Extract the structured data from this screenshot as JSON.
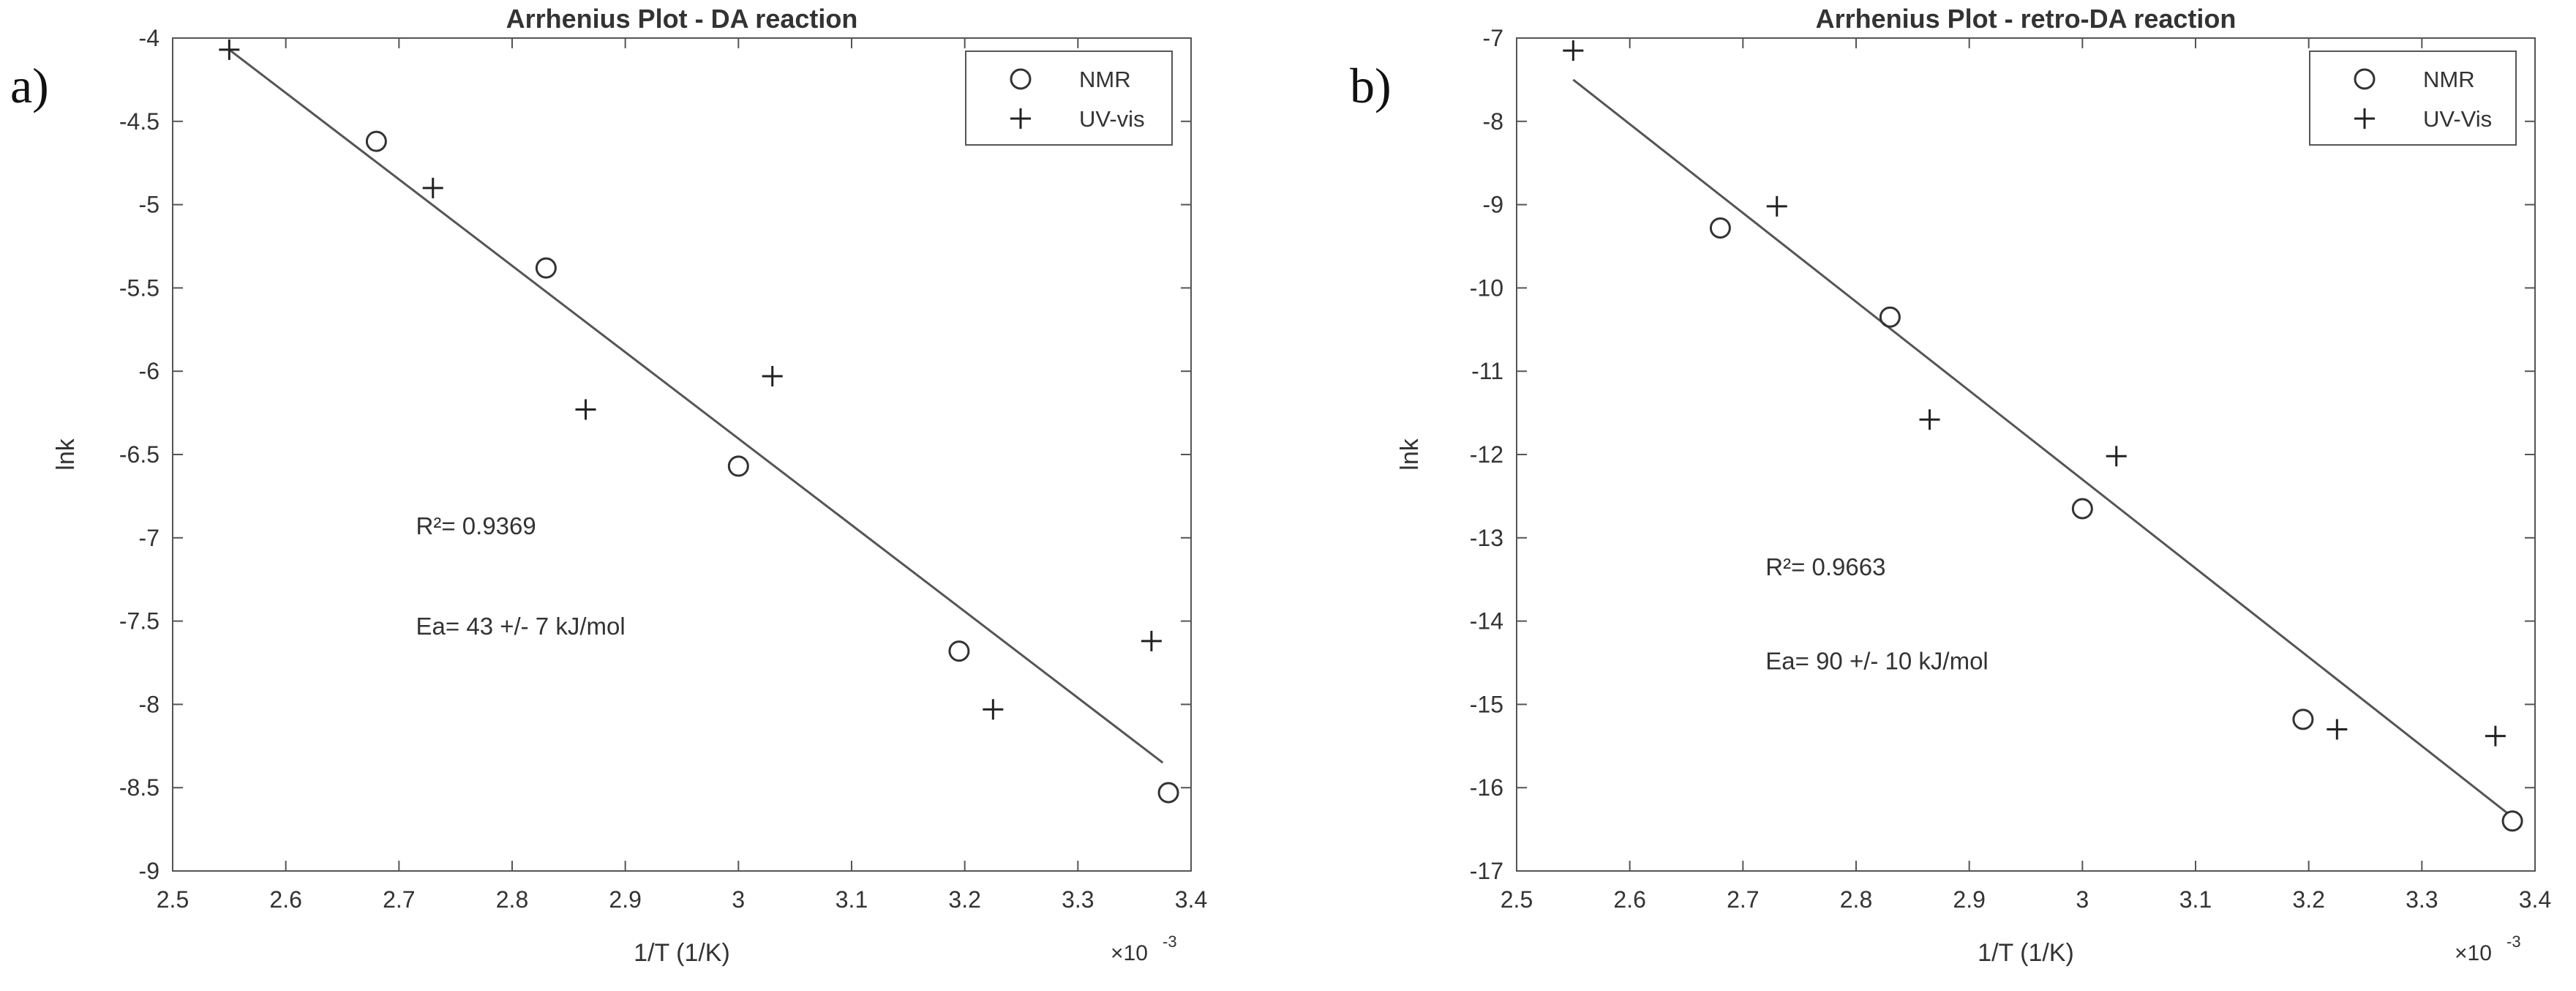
{
  "chart_data": [
    {
      "type": "scatter",
      "panel_label": "a)",
      "title": "Arrhenius Plot - DA reaction",
      "xlabel": "1/T (1/K)",
      "ylabel": "lnk",
      "x_multiplier": "×10-3",
      "x_multiplier_base": "×10",
      "x_multiplier_exp": "-3",
      "xlim": [
        2.5,
        3.4
      ],
      "ylim": [
        -9,
        -4
      ],
      "xticks": [
        2.5,
        2.6,
        2.7,
        2.8,
        2.9,
        3,
        3.1,
        3.2,
        3.3,
        3.4
      ],
      "xtick_labels": [
        "2.5",
        "2.6",
        "2.7",
        "2.8",
        "2.9",
        "3",
        "3.1",
        "3.2",
        "3.3",
        "3.4"
      ],
      "yticks": [
        -4,
        -4.5,
        -5,
        -5.5,
        -6,
        -6.5,
        -7,
        -7.5,
        -8,
        -8.5,
        -9
      ],
      "ytick_labels": [
        "-4",
        "-4.5",
        "-5",
        "-5.5",
        "-6",
        "-6.5",
        "-7",
        "-7.5",
        "-8",
        "-8.5",
        "-9"
      ],
      "grid": false,
      "legend_position": "top-right",
      "series": [
        {
          "name": "NMR",
          "marker": "circle",
          "x": [
            2.68,
            2.83,
            3.0,
            3.195,
            3.38
          ],
          "y": [
            -4.62,
            -5.38,
            -6.57,
            -7.68,
            -8.53
          ]
        },
        {
          "name": "UV-vis",
          "marker": "plus",
          "x": [
            2.55,
            2.73,
            2.865,
            3.03,
            3.225,
            3.365
          ],
          "y": [
            -4.07,
            -4.9,
            -6.23,
            -6.03,
            -8.03,
            -7.62
          ]
        }
      ],
      "fit_line": {
        "x": [
          2.55,
          3.375
        ],
        "y": [
          -4.07,
          -8.35
        ]
      },
      "annotations": [
        {
          "text": "R²= 0.9369",
          "x": 2.715,
          "y": -6.98
        },
        {
          "text": "Ea= 43 +/- 7 kJ/mol",
          "x": 2.715,
          "y": -7.58
        }
      ]
    },
    {
      "type": "scatter",
      "panel_label": "b)",
      "title": "Arrhenius Plot - retro-DA reaction",
      "xlabel": "1/T (1/K)",
      "ylabel": "lnk",
      "x_multiplier": "×10-3",
      "x_multiplier_base": "×10",
      "x_multiplier_exp": "-3",
      "xlim": [
        2.5,
        3.4
      ],
      "ylim": [
        -17,
        -7
      ],
      "xticks": [
        2.5,
        2.6,
        2.7,
        2.8,
        2.9,
        3,
        3.1,
        3.2,
        3.3,
        3.4
      ],
      "xtick_labels": [
        "2.5",
        "2.6",
        "2.7",
        "2.8",
        "2.9",
        "3",
        "3.1",
        "3.2",
        "3.3",
        "3.4"
      ],
      "yticks": [
        -7,
        -8,
        -9,
        -10,
        -11,
        -12,
        -13,
        -14,
        -15,
        -16,
        -17
      ],
      "ytick_labels": [
        "-7",
        "-8",
        "-9",
        "-10",
        "-11",
        "-12",
        "-13",
        "-14",
        "-15",
        "-16",
        "-17"
      ],
      "grid": false,
      "legend_position": "top-right",
      "series": [
        {
          "name": "NMR",
          "marker": "circle",
          "x": [
            2.68,
            2.83,
            3.0,
            3.195,
            3.38
          ],
          "y": [
            -9.28,
            -10.35,
            -12.65,
            -15.18,
            -16.4
          ]
        },
        {
          "name": "UV-Vis",
          "marker": "plus",
          "x": [
            2.55,
            2.73,
            2.865,
            3.03,
            3.225,
            3.365
          ],
          "y": [
            -7.15,
            -9.02,
            -11.58,
            -12.02,
            -15.3,
            -15.38
          ]
        }
      ],
      "fit_line": {
        "x": [
          2.55,
          3.375
        ],
        "y": [
          -7.5,
          -16.3
        ]
      },
      "annotations": [
        {
          "text": "R²= 0.9663",
          "x": 2.72,
          "y": -13.45
        },
        {
          "text": "Ea= 90 +/- 10 kJ/mol",
          "x": 2.72,
          "y": -14.58
        }
      ]
    }
  ]
}
